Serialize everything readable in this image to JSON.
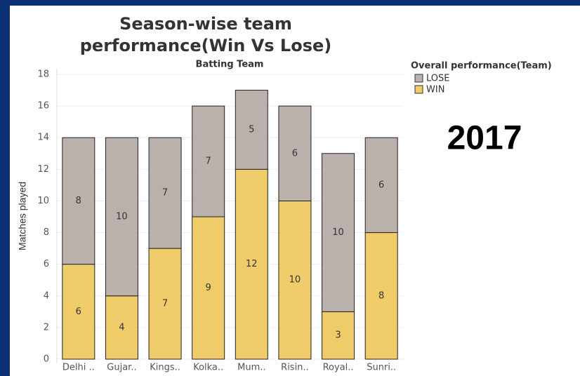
{
  "chart_data": {
    "type": "stacked-bar",
    "title": [
      "Season-wise team",
      "performance(Win Vs Lose)"
    ],
    "subtitle": "Batting Team",
    "y_label": "Matches played",
    "legend_title": "Overall performance(Team)",
    "annotation": "2017",
    "categories": [
      "Delhi ..",
      "Gujar..",
      "Kings..",
      "Kolka..",
      "Mum..",
      "Risin..",
      "Royal..",
      "Sunri.."
    ],
    "series": [
      {
        "name": "LOSE",
        "color": "#bab0ac",
        "values": [
          8,
          10,
          7,
          7,
          5,
          6,
          10,
          6
        ]
      },
      {
        "name": "WIN",
        "color": "#f0cb69",
        "values": [
          6,
          4,
          7,
          9,
          12,
          10,
          3,
          8
        ]
      }
    ],
    "ylim": [
      0,
      18
    ],
    "yticks": [
      0,
      2,
      4,
      6,
      8,
      10,
      12,
      14,
      16,
      18
    ],
    "grid": true
  }
}
